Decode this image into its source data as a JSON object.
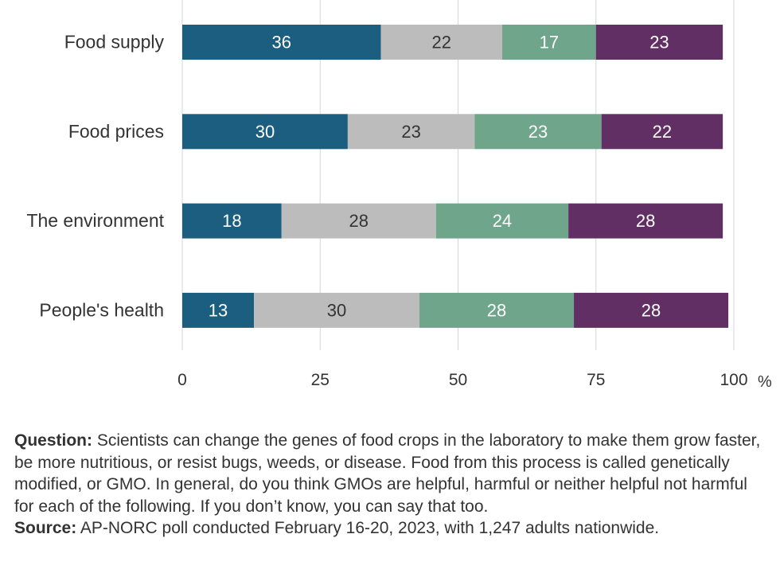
{
  "chart_data": {
    "type": "bar",
    "orientation": "horizontal",
    "stacked": true,
    "categories": [
      "Food supply",
      "Food prices",
      "The environment",
      "People's health"
    ],
    "series": [
      {
        "values": [
          36,
          30,
          18,
          13
        ],
        "color": "#1b5e80"
      },
      {
        "values": [
          22,
          23,
          28,
          30
        ],
        "color": "#bcbcbc"
      },
      {
        "values": [
          17,
          23,
          24,
          28
        ],
        "color": "#6fa58a"
      },
      {
        "values": [
          23,
          22,
          28,
          28
        ],
        "color": "#612f64"
      }
    ],
    "xlim": [
      0,
      100
    ],
    "xticks": [
      "0",
      "25",
      "50",
      "75",
      "100"
    ],
    "x_unit": "%",
    "grid": true,
    "value_label_colors": [
      "#ffffff",
      "#333333",
      "#ffffff",
      "#ffffff"
    ]
  },
  "notes": {
    "question_label": "Question:",
    "question_text": " Scientists can change the genes of food crops in the laboratory to make them grow faster, be more nutritious, or resist bugs, weeds, or disease. Food from this process is called genetically modified, or GMO.  In general, do you think GMOs are helpful, harmful or neither helpful not harmful for each of the following. If you don’t know, you can say that too.",
    "source_label": "Source:",
    "source_text": " AP-NORC poll conducted February 16-20, 2023, with 1,247 adults nationwide."
  }
}
